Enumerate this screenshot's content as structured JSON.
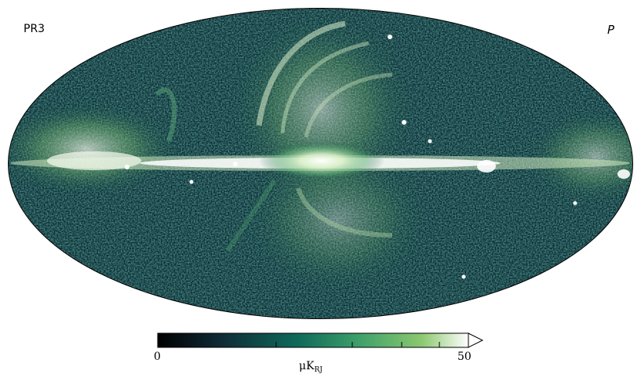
{
  "map": {
    "top_left_label": "PR3",
    "top_right_label": "P",
    "projection": "mollweide"
  },
  "colorbar": {
    "min_label": "0",
    "max_label": "50",
    "unit_prefix": "μK",
    "unit_sub": "RJ",
    "colors": [
      "#000000",
      "#0f2a35",
      "#0f6a5a",
      "#3ea06a",
      "#8cc870",
      "#ffffff"
    ]
  }
}
